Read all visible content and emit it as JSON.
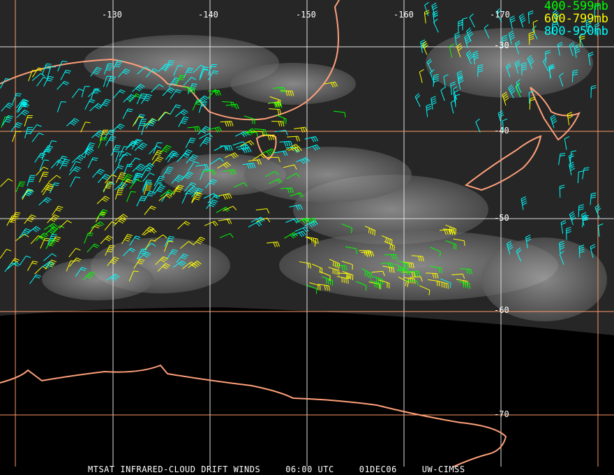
{
  "map": {
    "longitude_labels": [
      "-130",
      "-140",
      "-150",
      "-160",
      "-170"
    ],
    "latitude_labels": [
      "-30",
      "-40",
      "-50",
      "-60",
      "-70"
    ]
  },
  "legend": [
    {
      "label": "400-599mb",
      "color": "#00ff00"
    },
    {
      "label": "600-799mb",
      "color": "#ffff00"
    },
    {
      "label": "800-950mb",
      "color": "#00ffff"
    }
  ],
  "caption": {
    "product": "MTSAT INFRARED-CLOUD DRIFT WINDS",
    "time": "06:00 UTC",
    "date": "01DEC06",
    "source": "UW-CIMSS"
  },
  "colors": {
    "coastline": "#ffa07a",
    "grid_white": "#e0e0e0",
    "grid_orange": "#ff9966"
  }
}
